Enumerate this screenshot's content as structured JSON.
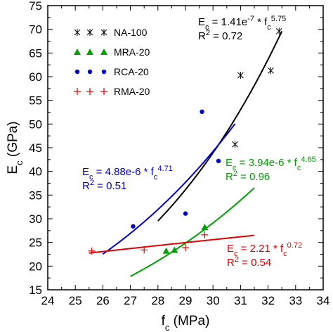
{
  "chart_data": {
    "type": "scatter",
    "xlabel": "f",
    "xlabel_sub": "c",
    "xlabel_unit": " (MPa)",
    "ylabel": "E",
    "ylabel_sub": "c",
    "ylabel_unit": " (GPa)",
    "xlim": [
      24,
      34
    ],
    "ylim": [
      15,
      75
    ],
    "xticks": [
      "24",
      "25",
      "26",
      "27",
      "28",
      "29",
      "30",
      "31",
      "32",
      "33",
      "34"
    ],
    "yticks": [
      "15",
      "20",
      "25",
      "30",
      "35",
      "40",
      "45",
      "50",
      "55",
      "60",
      "65",
      "70",
      "75"
    ],
    "grid": false,
    "legend_position": "top-left",
    "series": [
      {
        "name": "NA-100",
        "color": "#000000",
        "marker": "asterisk",
        "points": [
          [
            30.8,
            45.7
          ],
          [
            31.0,
            60.3
          ],
          [
            32.1,
            61.3
          ],
          [
            32.4,
            69.6
          ]
        ],
        "fit": {
          "coef": 1.41e-07,
          "exp": 5.75,
          "range": [
            28.0,
            32.5
          ]
        },
        "equation": {
          "lhs": "E",
          "lhs_sub": "c",
          "mid": " = 1.41e",
          "coef_sup": "-7",
          "tail": " * f",
          "var_sub": "c",
          "exp_sup": "5.75"
        },
        "r2": {
          "label": "R",
          "sup": "2",
          "value": " = 0.72"
        }
      },
      {
        "name": "MRA-20",
        "color": "#00a000",
        "marker": "triangle",
        "points": [
          [
            28.3,
            23.2
          ],
          [
            28.6,
            23.4
          ],
          [
            29.7,
            28.2
          ]
        ],
        "fit": {
          "coef": 3.94e-06,
          "exp": 4.65,
          "range": [
            27.0,
            31.5
          ]
        },
        "equation": {
          "lhs": "E",
          "lhs_sub": "c",
          "mid": " = 3.94e-6 * f",
          "coef_sup": "",
          "tail": "",
          "var_sub": "c",
          "exp_sup": "4.65"
        },
        "r2": {
          "label": "R",
          "sup": "2",
          "value": " = 0.96"
        }
      },
      {
        "name": "RCA-20",
        "color": "#0000d0",
        "marker": "circle",
        "points": [
          [
            27.1,
            28.4
          ],
          [
            29.0,
            31.1
          ],
          [
            29.6,
            52.6
          ],
          [
            30.2,
            42.2
          ]
        ],
        "fit": {
          "coef": 4.88e-06,
          "exp": 4.71,
          "range": [
            26.0,
            30.8
          ]
        },
        "equation": {
          "lhs": "E",
          "lhs_sub": "c",
          "mid": " = 4.88e-6 * f",
          "coef_sup": "",
          "tail": "",
          "var_sub": "c",
          "exp_sup": "4.71"
        },
        "r2": {
          "label": "R",
          "sup": "2",
          "value": " = 0.51"
        }
      },
      {
        "name": "RMA-20",
        "color": "#e00000",
        "marker": "plus",
        "points": [
          [
            25.6,
            23.2
          ],
          [
            27.5,
            23.4
          ],
          [
            29.0,
            23.9
          ],
          [
            29.7,
            26.6
          ]
        ],
        "fit": {
          "coef": 2.21,
          "exp": 0.72,
          "range": [
            25.5,
            31.5
          ]
        },
        "equation": {
          "lhs": "E",
          "lhs_sub": "c",
          "mid": " = 2.21 * f",
          "coef_sup": "",
          "tail": "",
          "var_sub": "c",
          "exp_sup": "0.72"
        },
        "r2": {
          "label": "R",
          "sup": "2",
          "value": " = 0.54"
        }
      }
    ]
  }
}
